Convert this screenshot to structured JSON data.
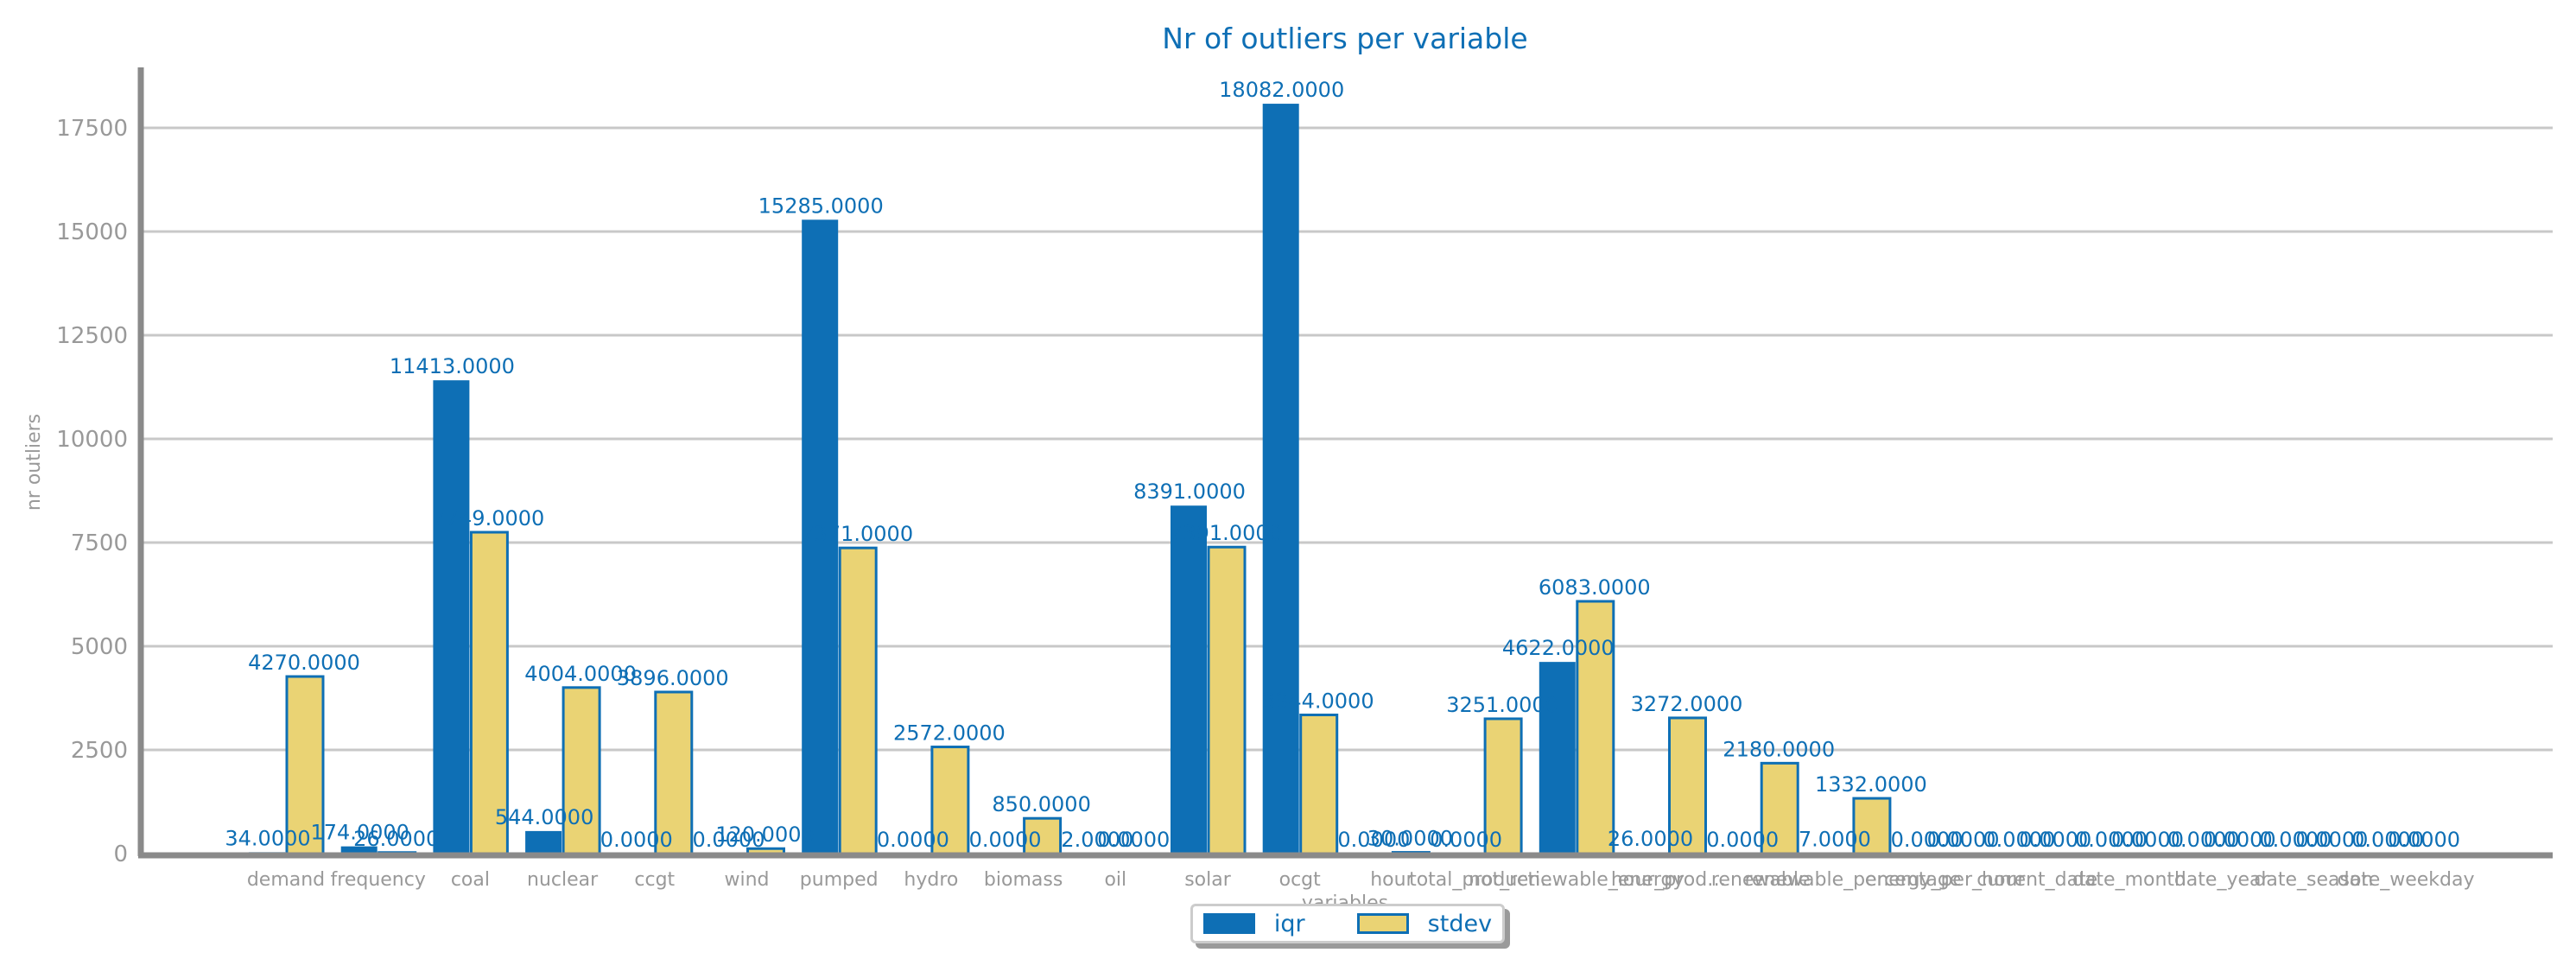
{
  "colors": {
    "iqr": "#0e6fb5",
    "stdev": "#ead374",
    "stdev_edge": "#0e6fb5",
    "grid": "#c8c8c8",
    "axis": "#8a8a8a",
    "tick_text": "#999999",
    "label_text": "#0e6fb5"
  },
  "chart_data": {
    "type": "bar",
    "title": "Nr of outliers per variable",
    "xlabel": "variables",
    "ylabel": "nr outliers",
    "ylim": [
      0,
      19000
    ],
    "yticks": [
      "0",
      "2500",
      "5000",
      "7500",
      "10000",
      "12500",
      "15000",
      "17500"
    ],
    "ytick_values": [
      0,
      2500,
      5000,
      7500,
      10000,
      12500,
      15000,
      17500
    ],
    "grid": true,
    "legend_position": "bottom-center",
    "categories": [
      "demand",
      "frequency",
      "coal",
      "nuclear",
      "ccgt",
      "wind",
      "pumped",
      "hydro",
      "biomass",
      "oil",
      "solar",
      "ocgt",
      "hour",
      "total_production",
      "not_renewable_energy",
      "hour_production",
      "renewable",
      "renewable_percentage",
      "energy_per_hour",
      "current_date",
      "date_month",
      "date_year",
      "date_season",
      "date_weekday"
    ],
    "tick_labels": [
      "demand",
      "frequency",
      "coal",
      "nuclear",
      "ccgt",
      "wind",
      "pumped",
      "hydro",
      "biomass",
      "oil",
      "solar",
      "ocgt",
      "hour",
      "total_producti…",
      "not_renewable_energy",
      "hour_prod…",
      "renewable",
      "renewable_percentage",
      "energy_per_hour",
      "current_date",
      "date_month",
      "date_year",
      "date_season",
      "date_weekday"
    ],
    "series": [
      {
        "name": "iqr",
        "values": [
          34,
          174,
          11413,
          544,
          0,
          0,
          15285,
          0,
          0,
          2,
          8391,
          18082,
          0,
          0,
          4622,
          26,
          0,
          7,
          0,
          0,
          0,
          0,
          0,
          0
        ],
        "labels": [
          "34.0000",
          "174.0000",
          "11413.0000",
          "544.0000",
          "0.0000",
          "0.0000",
          "15285.0000",
          "0.0000",
          "0.0000",
          "2.0000",
          "8391.0000",
          "18082.0000",
          "0.0000",
          "0.0000",
          "4622.0000",
          "26.0000",
          "0.0000",
          "7.0000",
          "0.0000",
          "0.0000",
          "0.0000",
          "0.0000",
          "0.0000",
          "0.0000"
        ]
      },
      {
        "name": "stdev",
        "values": [
          4270,
          26,
          7749,
          4004,
          3896,
          120,
          7371,
          2572,
          850,
          0,
          7391,
          3344,
          30,
          3251,
          6083,
          3272,
          2180,
          1332,
          0,
          0,
          0,
          0,
          0,
          0
        ],
        "labels": [
          "4270.0000",
          "26.0000",
          "7749.0000",
          "4004.0000",
          "3896.0000",
          "120.0000",
          "7371.0000",
          "2572.0000",
          "850.0000",
          "0.0000",
          "7391.0000",
          "3344.0000",
          "30.0000",
          "3251.0000",
          "6083.0000",
          "3272.0000",
          "2180.0000",
          "1332.0000",
          "0.0000",
          "0.0000",
          "0.0000",
          "0.0000",
          "0.0000",
          "0.0000"
        ]
      }
    ]
  }
}
